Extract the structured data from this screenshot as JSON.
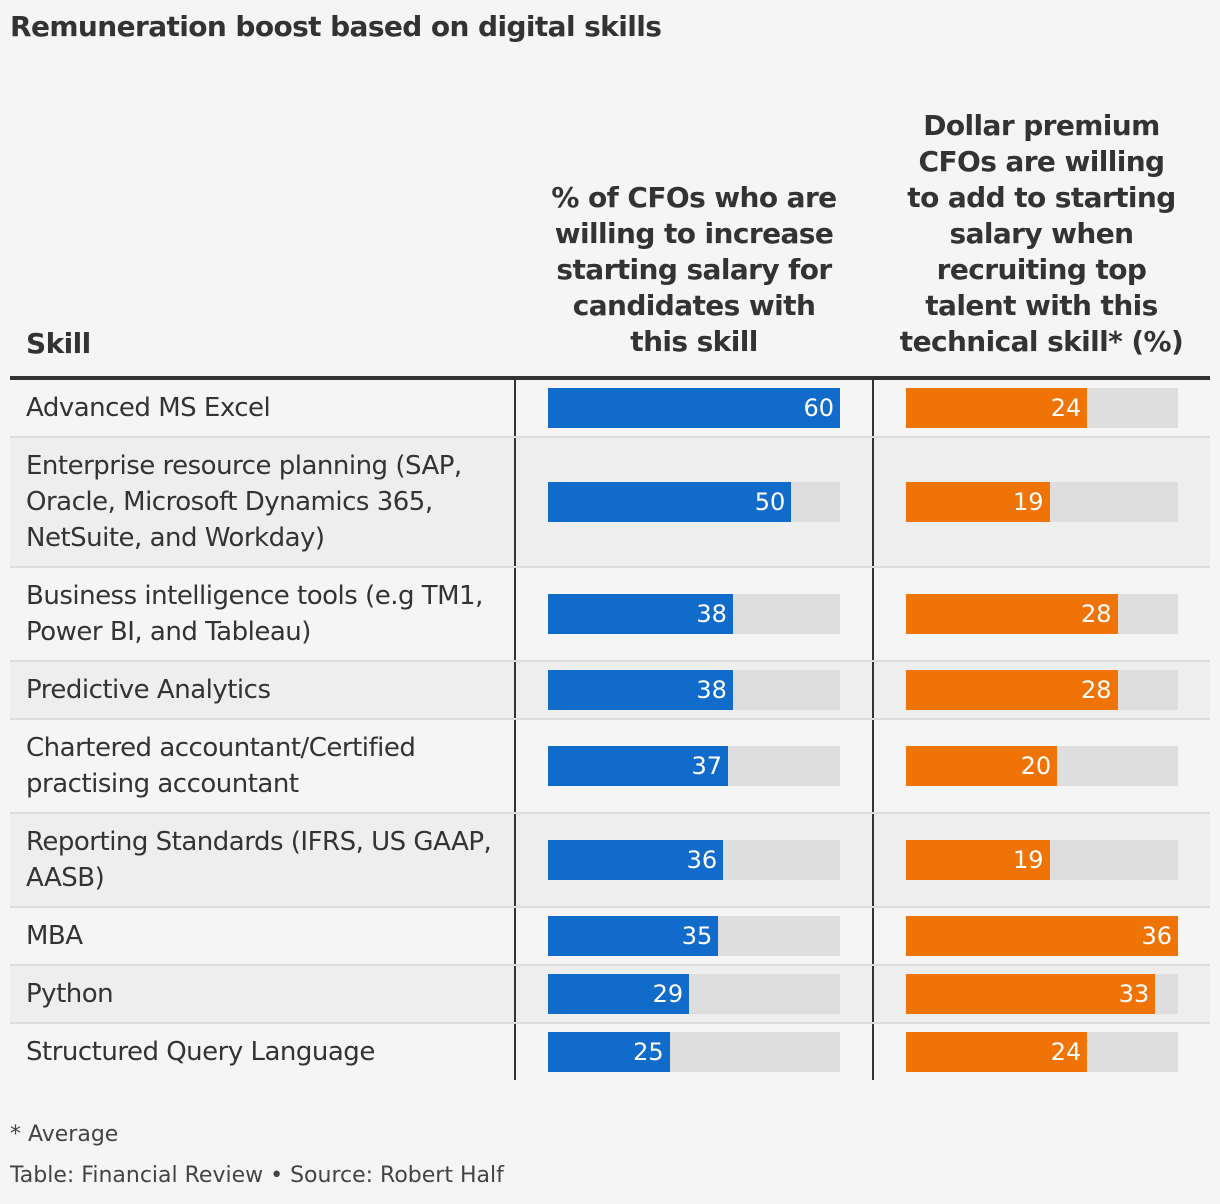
{
  "title": "Remuneration boost based on digital skills",
  "header": {
    "skill": "Skill",
    "col1": "% of CFOs who are\nwilling to increase\nstarting salary for\ncandidates with\nthis skill",
    "col2": "Dollar premium\nCFOs are willing\nto add to starting\nsalary when\nrecruiting top\ntalent with this\ntechnical skill* (%)"
  },
  "colors": {
    "blue": "#116bca",
    "orange": "#f07305",
    "track": "#dedede"
  },
  "chart_data": {
    "type": "table",
    "columns": [
      "Skill",
      "% of CFOs who are willing to increase starting salary for candidates with this skill",
      "Dollar premium CFOs are willing to add to starting salary when recruiting top talent with this technical skill* (%)"
    ],
    "col1_max": 60,
    "col2_max": 36,
    "rows": [
      {
        "skill": "Advanced MS Excel",
        "pct": 60,
        "premium": 24
      },
      {
        "skill": "Enterprise resource planning (SAP, Oracle, Microsoft Dynamics 365, NetSuite, and Workday)",
        "pct": 50,
        "premium": 19
      },
      {
        "skill": "Business intelligence tools (e.g TM1, Power BI, and Tableau)",
        "pct": 38,
        "premium": 28
      },
      {
        "skill": "Predictive Analytics",
        "pct": 38,
        "premium": 28
      },
      {
        "skill": "Chartered accountant/Certified practising accountant",
        "pct": 37,
        "premium": 20
      },
      {
        "skill": "Reporting Standards (IFRS, US GAAP, AASB)",
        "pct": 36,
        "premium": 19
      },
      {
        "skill": "MBA",
        "pct": 35,
        "premium": 36
      },
      {
        "skill": "Python",
        "pct": 29,
        "premium": 33
      },
      {
        "skill": "Structured Query Language",
        "pct": 25,
        "premium": 24
      }
    ]
  },
  "footnote": "* Average",
  "source": "Table: Financial Review • Source: Robert Half"
}
